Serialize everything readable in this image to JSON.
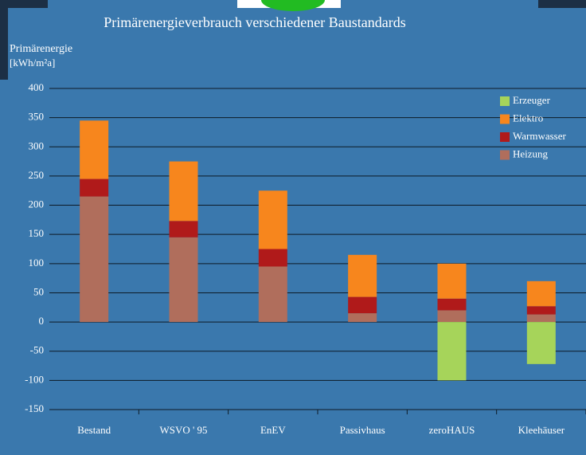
{
  "chart_data": {
    "type": "bar",
    "stacked": true,
    "title": "Primärenergieverbrauch verschiedener Baustandards",
    "y_label": [
      "Primärenergie",
      "[kWh/m²a]"
    ],
    "categories": [
      "Bestand",
      "WSVO ' 95",
      "EnEV",
      "Passivhaus",
      "zeroHAUS",
      "Kleehäuser"
    ],
    "series": [
      {
        "name": "Erzeuger",
        "color": "#a6d45a",
        "values": [
          null,
          null,
          null,
          null,
          -100,
          -72
        ]
      },
      {
        "name": "Elektro",
        "color": "#f7861d",
        "values": [
          100,
          102,
          100,
          72,
          60,
          43
        ]
      },
      {
        "name": "Warmwasser",
        "color": "#b01a1a",
        "values": [
          30,
          28,
          30,
          28,
          20,
          14
        ]
      },
      {
        "name": "Heizung",
        "color": "#b06e5c",
        "values": [
          215,
          145,
          95,
          15,
          20,
          13
        ]
      }
    ],
    "ylim": [
      -150,
      400
    ],
    "yticks": [
      -150,
      -100,
      -50,
      0,
      50,
      100,
      150,
      200,
      250,
      300,
      350,
      400
    ],
    "grid": true,
    "legend": "upper right"
  }
}
